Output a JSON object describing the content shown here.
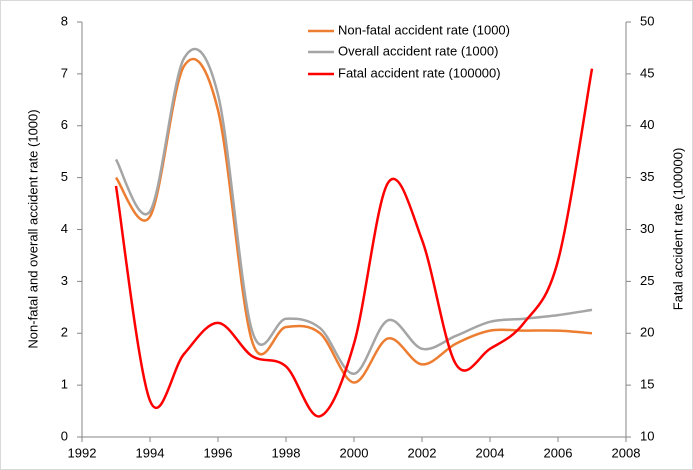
{
  "chart_data": {
    "type": "line",
    "x": [
      1993,
      1994,
      1995,
      1996,
      1997,
      1998,
      1999,
      2000,
      2001,
      2002,
      2003,
      2004,
      2005,
      2006,
      2007
    ],
    "xlim": [
      1992,
      2008
    ],
    "xticks": [
      1992,
      1994,
      1996,
      1998,
      2000,
      2002,
      2004,
      2006,
      2008
    ],
    "ylim": [
      0,
      8
    ],
    "yticks": [
      0,
      1,
      2,
      3,
      4,
      5,
      6,
      7,
      8
    ],
    "y2lim": [
      10,
      50
    ],
    "y2ticks": [
      10,
      15,
      20,
      25,
      30,
      35,
      40,
      45,
      50
    ],
    "ylabel": "Non-fatal and overall accident rate (1000)",
    "y2label": "Fatal accident rate (100000)",
    "smooth": true,
    "series": [
      {
        "name": "Non-fatal accident rate (1000)",
        "color": "#ed7d31",
        "values": [
          5.0,
          4.25,
          7.15,
          6.3,
          1.85,
          2.12,
          2.0,
          1.05,
          1.9,
          1.4,
          1.8,
          2.05,
          2.05,
          2.05,
          2.0
        ]
      },
      {
        "name": "Overall accident rate (1000)",
        "color": "#a5a5a5",
        "values": [
          5.35,
          4.35,
          7.3,
          6.6,
          2.05,
          2.28,
          2.1,
          1.22,
          2.25,
          1.7,
          1.95,
          2.22,
          2.28,
          2.35,
          2.45
        ]
      },
      {
        "name": "Fatal accident rate (100000)",
        "color": "#ff0000",
        "axis": "y2",
        "values": [
          34.2,
          13.5,
          18,
          21,
          17.8,
          16.8,
          12,
          19,
          34.5,
          29,
          17,
          18.5,
          21,
          27,
          45.5
        ]
      }
    ]
  }
}
